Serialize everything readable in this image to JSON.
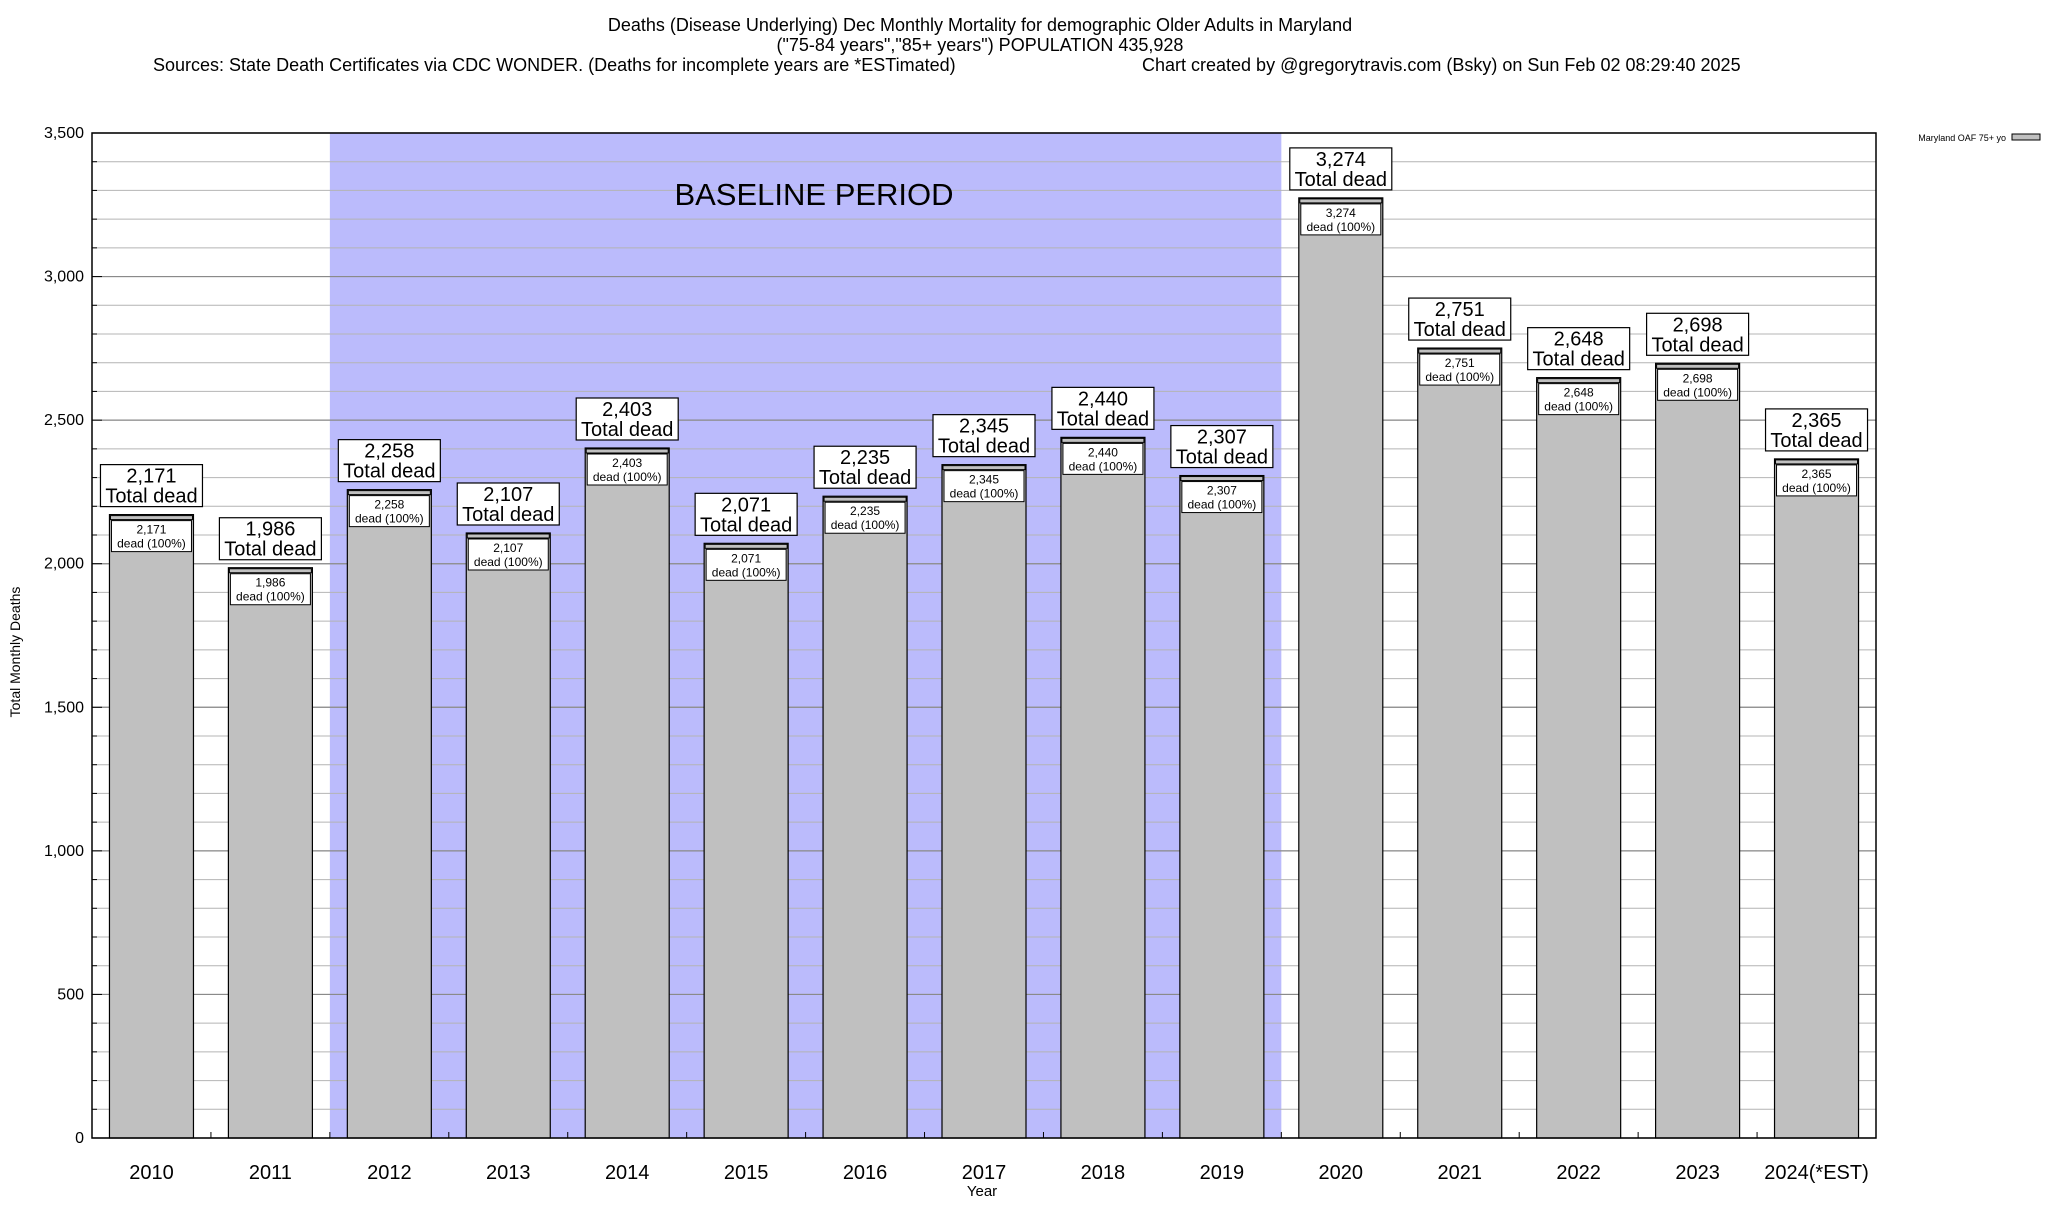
{
  "chart_data": {
    "type": "bar",
    "title_lines": [
      "Deaths (Disease Underlying) Dec Monthly Mortality for demographic Older Adults in Maryland",
      "(\"75-84 years\",\"85+ years\") POPULATION 435,928"
    ],
    "source_text": "Sources: State Death Certificates via CDC WONDER. (Deaths for incomplete years are *ESTimated)",
    "credit_text": "Chart created by @gregorytravis.com (Bsky) on Sun Feb 02 08:29:40 2025",
    "xlabel": "Year",
    "ylabel": "Total Monthly Deaths",
    "ylim": [
      0,
      3500
    ],
    "yticks": [
      0,
      500,
      1000,
      1500,
      2000,
      2500,
      3000,
      3500
    ],
    "ytick_labels": [
      "0",
      "500",
      "1,000",
      "1,500",
      "2,000",
      "2,500",
      "3,000",
      "3,500"
    ],
    "y_minor_step": 100,
    "grid": true,
    "categories": [
      "2010",
      "2011",
      "2012",
      "2013",
      "2014",
      "2015",
      "2016",
      "2017",
      "2018",
      "2019",
      "2020",
      "2021",
      "2022",
      "2023",
      "2024(*EST)"
    ],
    "series": [
      {
        "name": "Maryland OAF 75+ yo",
        "color": "#c0c0c0",
        "values": [
          2171,
          1986,
          2258,
          2107,
          2403,
          2071,
          2235,
          2345,
          2440,
          2307,
          3274,
          2751,
          2648,
          2698,
          2365
        ]
      }
    ],
    "value_labels": [
      "2,171",
      "1,986",
      "2,258",
      "2,107",
      "2,403",
      "2,071",
      "2,235",
      "2,345",
      "2,440",
      "2,307",
      "3,274",
      "2,751",
      "2,648",
      "2,698",
      "2,365"
    ],
    "total_label_text": "Total dead",
    "inner_label_text": "dead (100%)",
    "baseline": {
      "label": "BASELINE PERIOD",
      "start_category": "2012",
      "end_category": "2019",
      "color": "#bbbbfc"
    },
    "legend": {
      "label": "Maryland OAF 75+ yo",
      "placement": "top-right"
    }
  }
}
